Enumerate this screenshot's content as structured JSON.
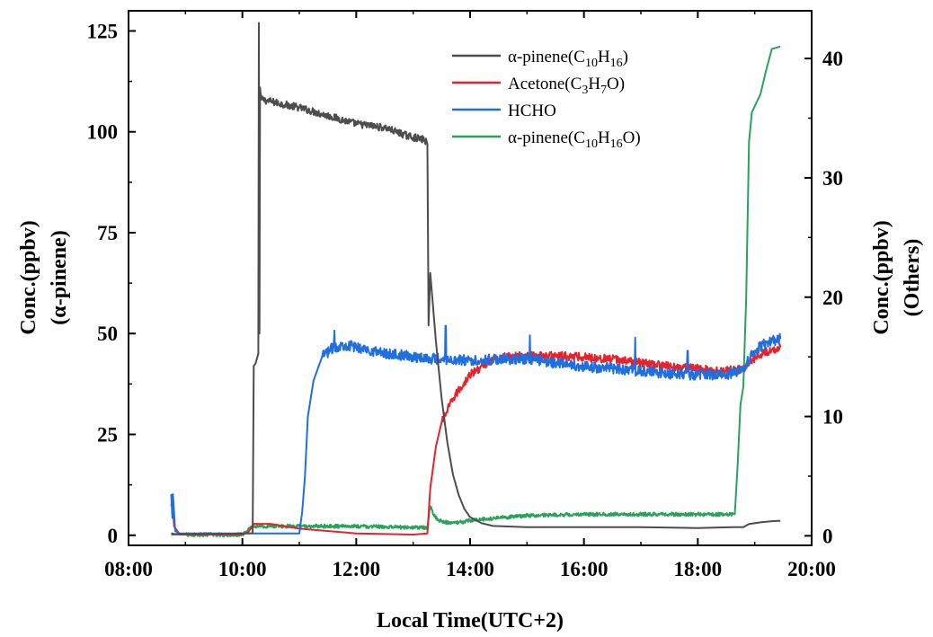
{
  "chart_data": {
    "type": "line",
    "xlabel": "Local Time(UTC+2)",
    "ylabel_left": [
      "Conc.(ppbv)",
      "(α-pinene)"
    ],
    "ylabel_right": [
      "Conc.(ppbv)",
      "(Others)"
    ],
    "xlim": [
      8,
      20
    ],
    "xticks": [
      {
        "v": 8,
        "label": "08:00"
      },
      {
        "v": 10,
        "label": "10:00"
      },
      {
        "v": 12,
        "label": "12:00"
      },
      {
        "v": 14,
        "label": "14:00"
      },
      {
        "v": 16,
        "label": "16:00"
      },
      {
        "v": 18,
        "label": "18:00"
      },
      {
        "v": 20,
        "label": "20:00"
      }
    ],
    "ylim_left": [
      -2.5,
      130
    ],
    "yticks_left": [
      {
        "v": 0,
        "label": "0"
      },
      {
        "v": 25,
        "label": "25"
      },
      {
        "v": 50,
        "label": "50"
      },
      {
        "v": 75,
        "label": "75"
      },
      {
        "v": 100,
        "label": "100"
      },
      {
        "v": 125,
        "label": "125"
      }
    ],
    "ylim_right": [
      -0.8,
      44
    ],
    "yticks_right": [
      {
        "v": 0,
        "label": "0"
      },
      {
        "v": 10,
        "label": "10"
      },
      {
        "v": 20,
        "label": "20"
      },
      {
        "v": 30,
        "label": "30"
      },
      {
        "v": 40,
        "label": "40"
      }
    ],
    "legend_position": "top-right",
    "series": [
      {
        "name": "α-pinene(C10H16)",
        "label_parts": [
          {
            "t": "α-pinene(C"
          },
          {
            "t": "10",
            "sub": true
          },
          {
            "t": "H"
          },
          {
            "t": "16",
            "sub": true
          },
          {
            "t": ")"
          }
        ],
        "color": "#4d4d4d",
        "axis": "left",
        "x": [
          8.75,
          8.8,
          9.5,
          10.18,
          10.2,
          10.23,
          10.28,
          10.29,
          10.3,
          10.31,
          10.33,
          10.5,
          11.0,
          11.5,
          12.0,
          12.5,
          12.9,
          13.2,
          13.25,
          13.27,
          13.3,
          13.4,
          13.5,
          13.6,
          13.7,
          13.8,
          13.9,
          14.0,
          14.2,
          14.4,
          15.0,
          16.0,
          17.0,
          18.0,
          18.6,
          18.8,
          18.9,
          19.1,
          19.3,
          19.45
        ],
        "y": [
          0.5,
          0.3,
          0.3,
          0.5,
          42,
          42.5,
          45,
          127,
          50,
          111,
          108,
          107.5,
          106,
          104,
          102,
          101,
          99,
          98,
          97,
          52,
          65,
          48,
          34,
          23,
          15,
          10,
          6.5,
          4.5,
          3,
          2.3,
          2,
          2,
          2,
          1.8,
          2,
          2,
          2.8,
          3.2,
          3.5,
          3.6
        ],
        "noise": 0.9,
        "noise_range": [
          10.33,
          13.25
        ]
      },
      {
        "name": "Acetone(C3H7O)",
        "label_parts": [
          {
            "t": "Acetone(C"
          },
          {
            "t": "3",
            "sub": true
          },
          {
            "t": "H"
          },
          {
            "t": "7",
            "sub": true
          },
          {
            "t": "O)"
          }
        ],
        "color": "#e8212a",
        "axis": "right",
        "x": [
          8.75,
          8.77,
          8.8,
          8.9,
          10.0,
          10.1,
          10.2,
          10.5,
          11.0,
          12.0,
          13.0,
          13.25,
          13.3,
          13.4,
          13.5,
          13.7,
          14.0,
          14.3,
          14.6,
          15.0,
          15.5,
          16.0,
          16.5,
          17.0,
          17.5,
          18.0,
          18.4,
          18.8,
          18.9,
          19.1,
          19.3,
          19.45
        ],
        "y": [
          2.5,
          3,
          0.8,
          0.1,
          0.1,
          0.3,
          1,
          1,
          0.6,
          0.2,
          0.1,
          0.2,
          4,
          7.5,
          9.5,
          11.5,
          13.5,
          14.5,
          15,
          15.1,
          15.1,
          15,
          14.8,
          14.5,
          14.2,
          14,
          13.8,
          14,
          14.6,
          15.2,
          15.6,
          15.8
        ],
        "noise": 0.35,
        "noise_range": [
          13.5,
          19.45
        ]
      },
      {
        "name": "HCHO",
        "label_parts": [
          {
            "t": "HCHO"
          }
        ],
        "color": "#1f6fe0",
        "axis": "right",
        "x": [
          8.75,
          8.77,
          8.78,
          8.82,
          8.9,
          10.0,
          11.0,
          11.05,
          11.1,
          11.15,
          11.25,
          11.4,
          11.6,
          11.8,
          12.0,
          12.5,
          13.0,
          13.5,
          14.0,
          14.5,
          15.0,
          15.5,
          16.0,
          16.5,
          17.0,
          17.5,
          18.0,
          18.5,
          18.8,
          19.0,
          19.2,
          19.45
        ],
        "y": [
          3.5,
          1.5,
          3.5,
          0.4,
          0.2,
          0.2,
          0.2,
          2,
          5,
          10,
          13,
          15,
          15.8,
          16,
          15.8,
          15.3,
          15,
          14.8,
          14.7,
          14.8,
          14.8,
          14.5,
          14.2,
          14,
          13.8,
          13.6,
          13.5,
          13.5,
          14,
          15.5,
          16.2,
          16.5
        ],
        "noise": 0.45,
        "noise_range": [
          11.3,
          19.45
        ],
        "spikes": [
          {
            "x": 11.27,
            "y": 18.6
          },
          {
            "x": 11.62,
            "y": 17.2
          },
          {
            "x": 13.57,
            "y": 17.6
          },
          {
            "x": 15.05,
            "y": 16.8
          },
          {
            "x": 16.9,
            "y": 16.6
          },
          {
            "x": 17.82,
            "y": 15.5
          }
        ]
      },
      {
        "name": "α-pinene(C10H16O)",
        "label_parts": [
          {
            "t": "α-pinene(C"
          },
          {
            "t": "10",
            "sub": true
          },
          {
            "t": "H"
          },
          {
            "t": "16",
            "sub": true
          },
          {
            "t": "O)"
          }
        ],
        "color": "#28a35a",
        "axis": "right",
        "x": [
          8.75,
          8.8,
          9.0,
          10.0,
          10.1,
          10.2,
          10.5,
          11.0,
          12.0,
          13.0,
          13.25,
          13.3,
          13.35,
          13.45,
          13.6,
          13.8,
          14.0,
          14.5,
          15.0,
          16.0,
          17.0,
          18.0,
          18.65,
          18.7,
          18.75,
          18.8,
          18.85,
          18.9,
          18.95,
          19.0,
          19.05,
          19.1,
          19.2,
          19.3,
          19.45
        ],
        "y": [
          0.1,
          0.1,
          0.1,
          0.1,
          0.5,
          0.8,
          0.8,
          0.8,
          0.8,
          0.7,
          0.7,
          2.5,
          1.8,
          1.3,
          1.1,
          1.1,
          1.3,
          1.5,
          1.7,
          1.8,
          1.8,
          1.8,
          1.8,
          6,
          11,
          12.5,
          20,
          33,
          35.5,
          36,
          36.5,
          37,
          39,
          40.8,
          41
        ],
        "noise": 0.15,
        "noise_range": [
          9.0,
          18.65
        ]
      }
    ]
  }
}
